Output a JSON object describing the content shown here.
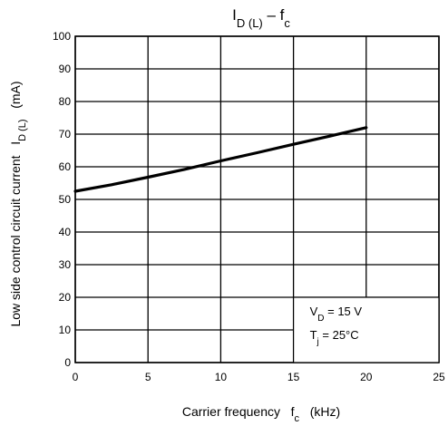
{
  "chart_data": {
    "type": "line",
    "title": {
      "main": "I",
      "main_sub": "D (L)",
      "dash": " – f",
      "dash_sub": "c"
    },
    "xlabel": {
      "text": "Carrier frequency",
      "symbol": "f",
      "symbol_sub": "c",
      "unit": "(kHz)"
    },
    "ylabel": {
      "text": "Low side control circuit current",
      "symbol": "I",
      "symbol_sub": "D (L)",
      "unit": "(mA)"
    },
    "xlim": [
      0,
      25
    ],
    "ylim": [
      0,
      100
    ],
    "x_ticks": [
      "0",
      "5",
      "10",
      "15",
      "20",
      "25"
    ],
    "y_ticks": [
      "0",
      "10",
      "20",
      "30",
      "40",
      "50",
      "60",
      "70",
      "80",
      "90",
      "100"
    ],
    "grid": true,
    "series": [
      {
        "x": [
          0,
          2.5,
          5,
          7.5,
          10,
          12.5,
          15,
          17.5,
          20
        ],
        "y": [
          52.5,
          54.5,
          56.8,
          59.2,
          61.8,
          64.3,
          66.9,
          69.4,
          72.0
        ]
      }
    ],
    "annotations": [
      {
        "symbol": "V",
        "sub": "D",
        "text": " = 15 V"
      },
      {
        "symbol": "T",
        "sub": "j",
        "text": " = 25°C"
      }
    ]
  }
}
